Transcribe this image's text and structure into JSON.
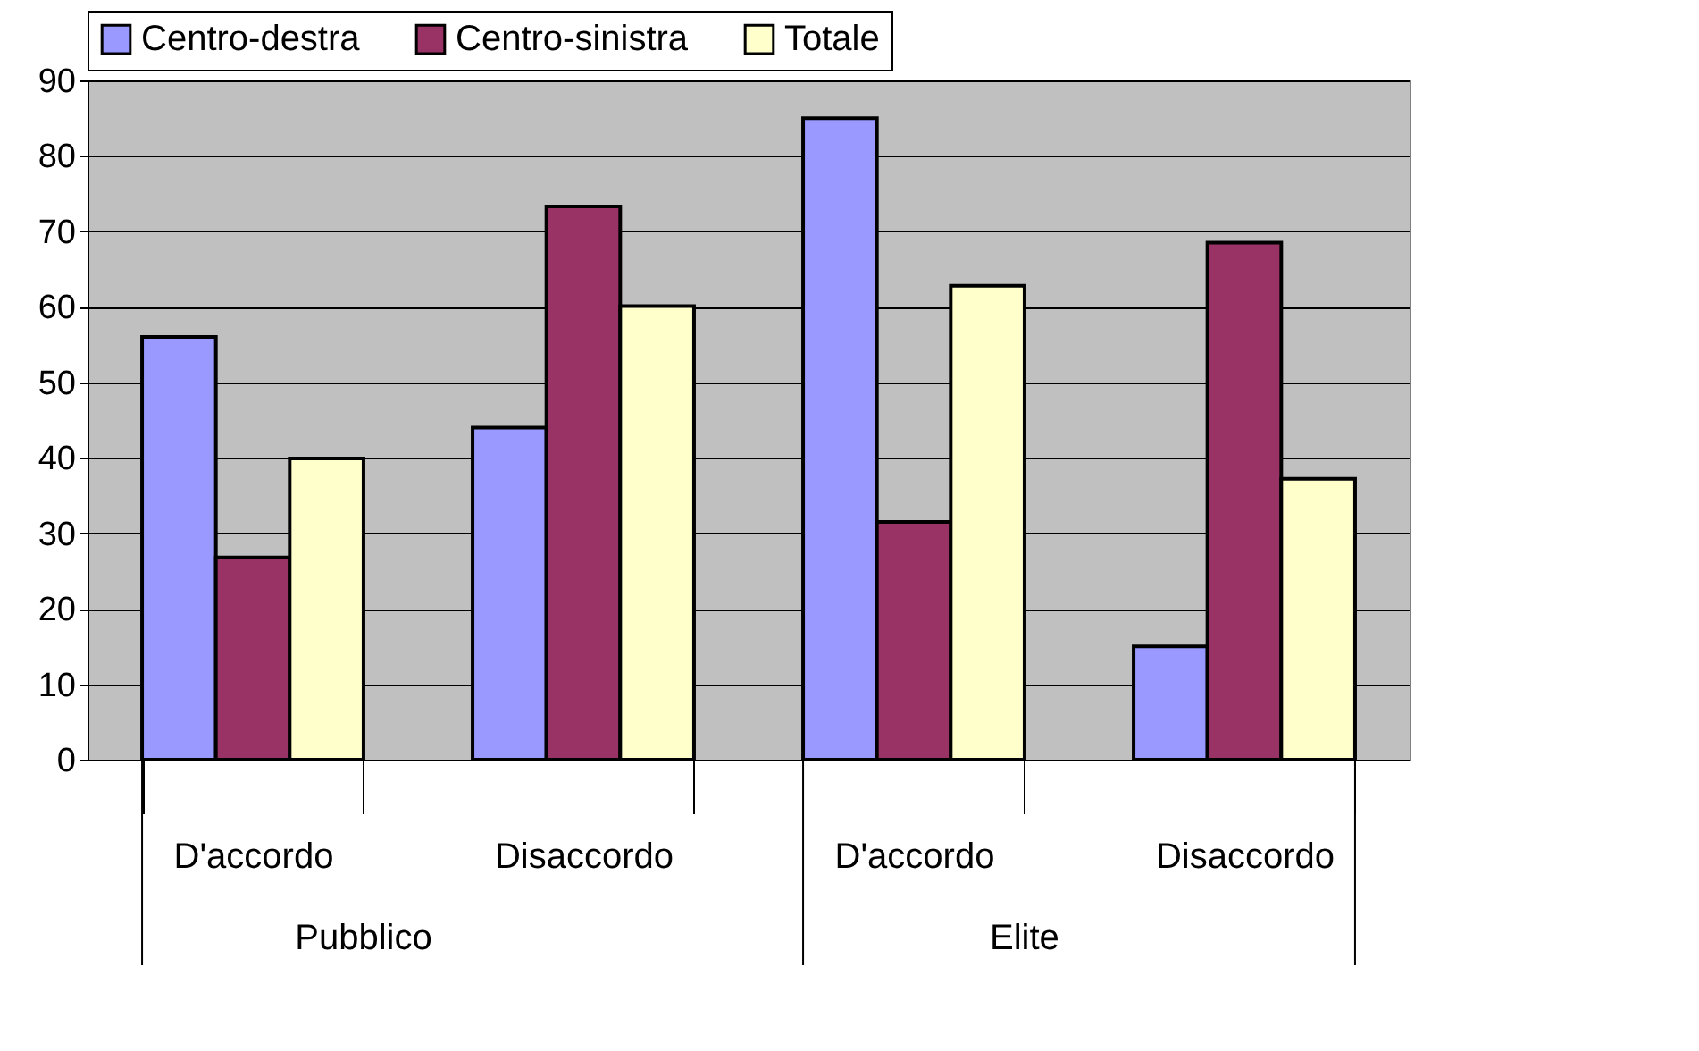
{
  "chart_data": {
    "type": "bar",
    "categories": [
      "D'accordo",
      "Disaccordo",
      "D'accordo",
      "Disaccordo"
    ],
    "series": [
      {
        "name": "Centro-destra",
        "color": "#9999ff",
        "values": [
          56,
          44,
          85,
          15
        ]
      },
      {
        "name": "Centro-sinistra",
        "color": "#993366",
        "values": [
          26.8,
          73.3,
          31.5,
          68.5
        ]
      },
      {
        "name": "Totale",
        "color": "#ffffcc",
        "values": [
          39.9,
          60.1,
          62.8,
          37.2
        ]
      }
    ],
    "ylim": [
      0,
      90
    ],
    "yticks": [
      0,
      10,
      20,
      30,
      40,
      50,
      60,
      70,
      80,
      90
    ],
    "grid": "y",
    "legend": "top",
    "annotations": [
      "Pubblico",
      "Elite"
    ]
  }
}
